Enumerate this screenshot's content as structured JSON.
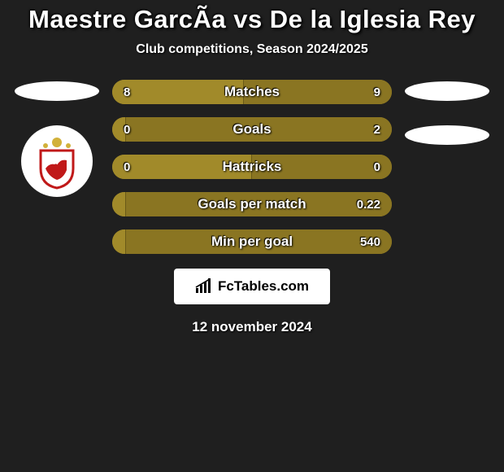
{
  "title": {
    "text": "Maestre GarcÃa vs De la Iglesia Rey",
    "fontsize": 31,
    "color": "#ffffff"
  },
  "subtitle": {
    "text": "Club competitions, Season 2024/2025",
    "fontsize": 16,
    "color": "#ffffff"
  },
  "colors": {
    "background": "#1f1f1f",
    "bar_left": "#a18a2a",
    "bar_right": "#8a7522",
    "bar_midline": "#6a5a18",
    "ellipse": "#ffffff",
    "crest_bg": "#ffffff",
    "crest_red": "#c01919",
    "crest_gold": "#d2b13a"
  },
  "bars": [
    {
      "label": "Matches",
      "left": "8",
      "right": "9",
      "left_pct": 47,
      "right_pct": 53
    },
    {
      "label": "Goals",
      "left": "0",
      "right": "2",
      "left_pct": 5,
      "right_pct": 95
    },
    {
      "label": "Hattricks",
      "left": "0",
      "right": "0",
      "left_pct": 50,
      "right_pct": 50
    },
    {
      "label": "Goals per match",
      "left": "",
      "right": "0.22",
      "left_pct": 5,
      "right_pct": 95
    },
    {
      "label": "Min per goal",
      "left": "",
      "right": "540",
      "left_pct": 5,
      "right_pct": 95
    }
  ],
  "bar_style": {
    "height": 30,
    "radius": 15,
    "gap": 16,
    "label_fontsize": 17,
    "value_fontsize": 15
  },
  "footer": {
    "brand": "FcTables.com",
    "brand_fontsize": 17,
    "date": "12 november 2024",
    "date_fontsize": 17
  }
}
